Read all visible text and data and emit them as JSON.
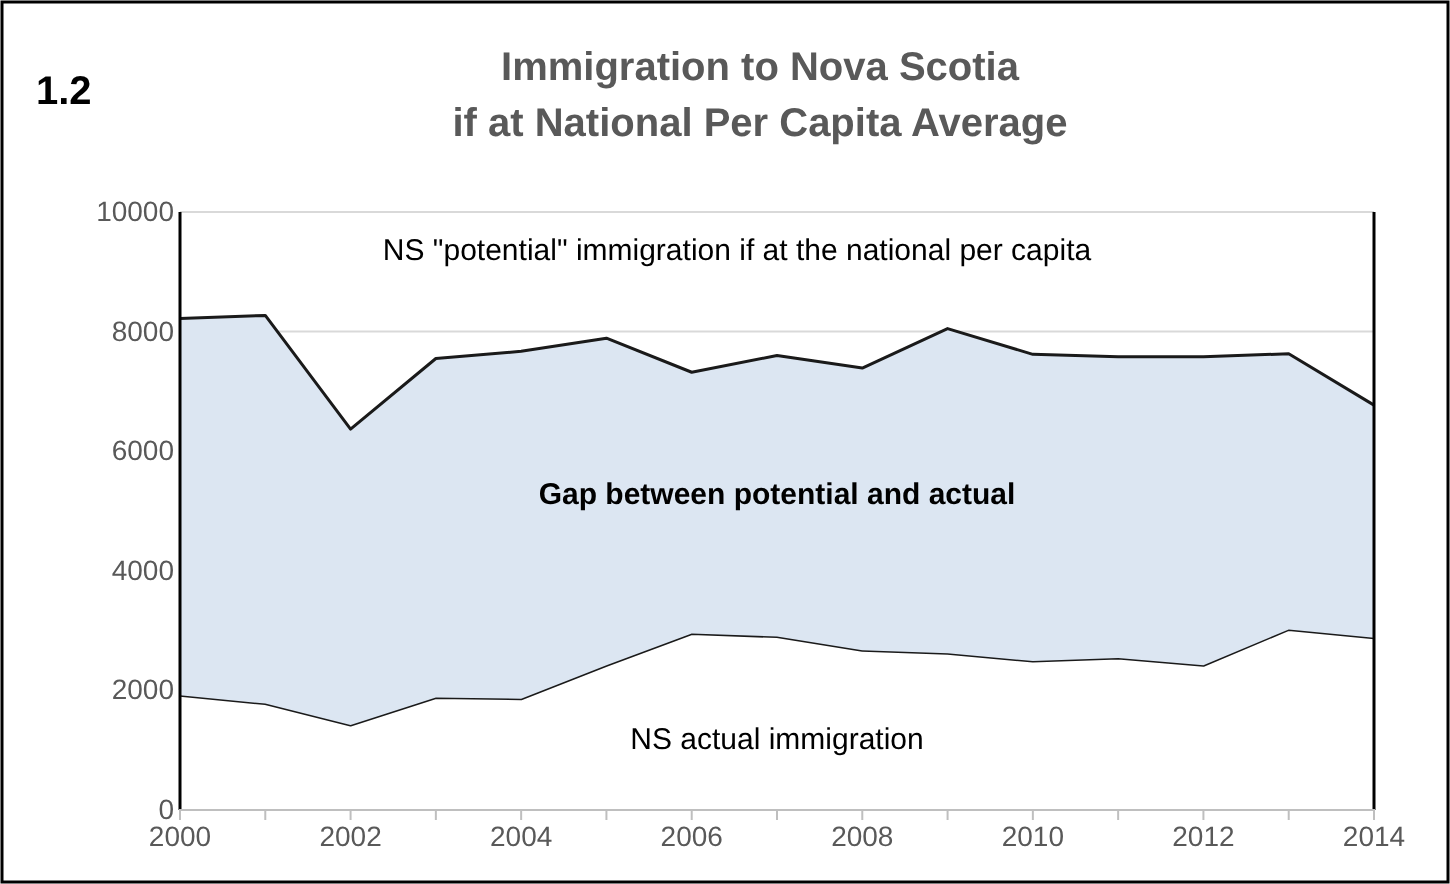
{
  "chart_data": {
    "type": "area",
    "stacked": true,
    "title": "Immigration to Nova Scotia\nif at National Per Capita Average",
    "x": [
      2000,
      2001,
      2002,
      2003,
      2004,
      2005,
      2006,
      2007,
      2008,
      2009,
      2010,
      2011,
      2012,
      2013,
      2014
    ],
    "series": [
      {
        "name": "NS actual immigration",
        "color": "#ffffff",
        "values": [
          1920,
          1780,
          1420,
          1880,
          1860,
          2420,
          2950,
          2900,
          2670,
          2620,
          2490,
          2540,
          2420,
          3020,
          2880
        ]
      },
      {
        "name": "Gap between potential and actual",
        "color": "#dce6f2",
        "values": [
          6300,
          6490,
          4950,
          5670,
          5810,
          5470,
          4370,
          4700,
          4720,
          5430,
          5130,
          5040,
          5160,
          4610,
          3890
        ]
      }
    ],
    "annotations": [
      "1.2",
      "NS \"potential\" immigration if at the national per capita"
    ],
    "xlim": [
      2000,
      2014
    ],
    "xticks": [
      2000,
      {
        "value": 2001,
        "label": null
      },
      2002,
      {
        "value": 2003,
        "label": null
      },
      2004,
      {
        "value": 2005,
        "label": null
      },
      2006,
      {
        "value": 2007,
        "label": null
      },
      2008,
      {
        "value": 2009,
        "label": null
      },
      2010,
      {
        "value": 2011,
        "label": null
      },
      2012,
      {
        "value": 2013,
        "label": null
      },
      2014
    ],
    "ylim": [
      0,
      10000
    ],
    "yticks": [
      0,
      2000,
      4000,
      6000,
      8000,
      10000
    ],
    "grid": "y"
  }
}
